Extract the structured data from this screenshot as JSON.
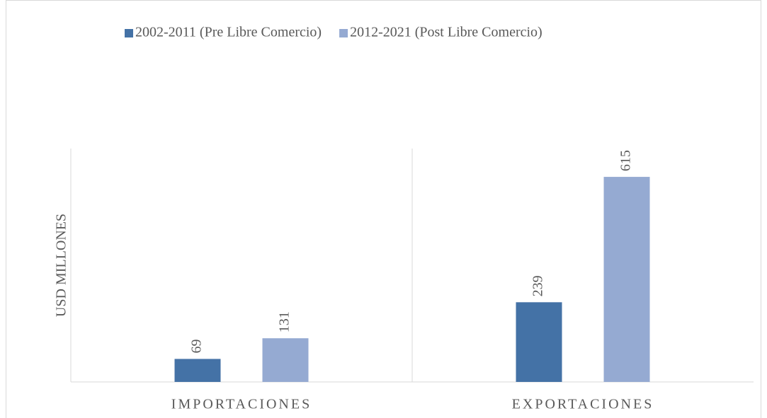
{
  "chart_data": {
    "type": "bar",
    "y_label": "USD MILLONES",
    "categories": [
      "IMPORTACIONES",
      "EXPORTACIONES"
    ],
    "series": [
      {
        "name": "2002-2011 (Pre Libre Comercio)",
        "color": "#4472a6",
        "values": [
          69,
          239
        ]
      },
      {
        "name": "2012-2021 (Post Libre Comercio)",
        "color": "#95aad2",
        "values": [
          131,
          615
        ]
      }
    ],
    "ylim": [
      0,
      700
    ],
    "legend": "top"
  }
}
